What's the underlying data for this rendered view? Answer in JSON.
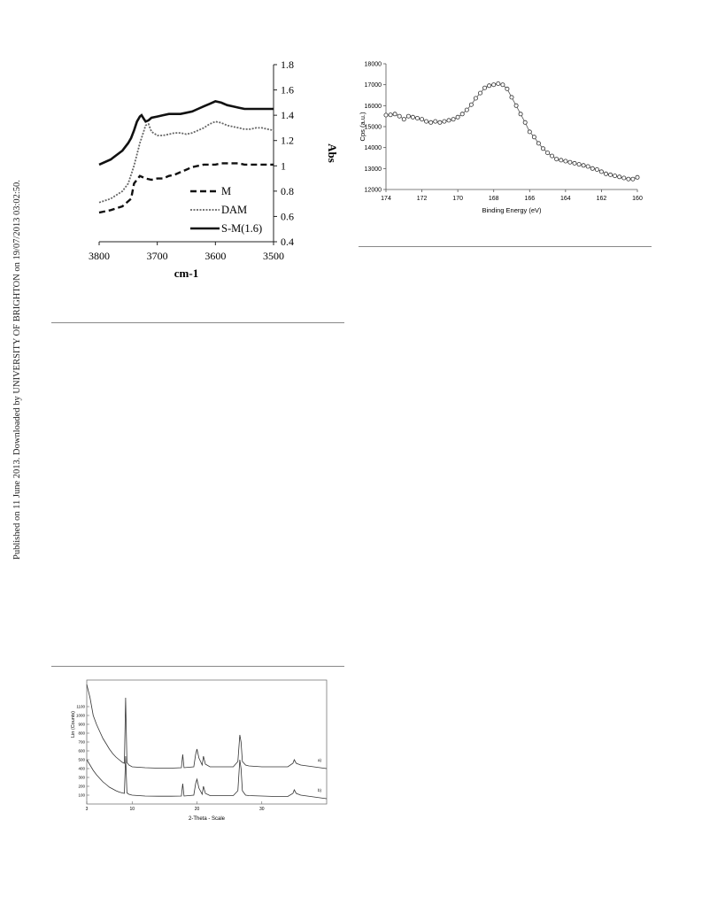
{
  "sidebar": {
    "text": "Published on 11 June 2013. Downloaded by UNIVERSITY OF BRIGHTON on 19/07/2013 03:02:50."
  },
  "chart_data": [
    {
      "type": "line",
      "xlabel": "cm-1",
      "ylabel": "Abs",
      "xlim": [
        3800,
        3500
      ],
      "ylim": [
        0.4,
        1.8
      ],
      "x_ticks": [
        "3800",
        "3700",
        "3600",
        "3500"
      ],
      "y_ticks": [
        "0.4",
        "0.6",
        "0.8",
        "1",
        "1.2",
        "1.4",
        "1.6",
        "1.8"
      ],
      "legend_position": "bottom-right",
      "grid": false,
      "series": [
        {
          "name": "M",
          "style": "dashed",
          "x": [
            3800,
            3780,
            3760,
            3745,
            3740,
            3730,
            3720,
            3710,
            3700,
            3690,
            3680,
            3670,
            3660,
            3650,
            3640,
            3630,
            3620,
            3610,
            3600,
            3590,
            3580,
            3570,
            3560,
            3550,
            3540,
            3530,
            3520,
            3510,
            3500
          ],
          "y": [
            0.63,
            0.65,
            0.68,
            0.74,
            0.86,
            0.92,
            0.9,
            0.89,
            0.9,
            0.9,
            0.92,
            0.93,
            0.95,
            0.97,
            0.99,
            1.0,
            1.01,
            1.01,
            1.01,
            1.02,
            1.02,
            1.02,
            1.02,
            1.01,
            1.01,
            1.01,
            1.01,
            1.01,
            1.01
          ]
        },
        {
          "name": "DAM",
          "style": "dotted",
          "x": [
            3800,
            3780,
            3760,
            3750,
            3740,
            3730,
            3725,
            3720,
            3715,
            3710,
            3700,
            3690,
            3680,
            3670,
            3660,
            3650,
            3640,
            3630,
            3620,
            3610,
            3600,
            3590,
            3580,
            3570,
            3560,
            3550,
            3540,
            3530,
            3520,
            3510,
            3500
          ],
          "y": [
            0.71,
            0.74,
            0.8,
            0.86,
            1.0,
            1.18,
            1.25,
            1.32,
            1.33,
            1.27,
            1.24,
            1.24,
            1.25,
            1.26,
            1.26,
            1.25,
            1.26,
            1.28,
            1.3,
            1.33,
            1.35,
            1.34,
            1.32,
            1.31,
            1.3,
            1.29,
            1.29,
            1.3,
            1.3,
            1.29,
            1.28
          ]
        },
        {
          "name": "S-M(1.6)",
          "style": "solid",
          "x": [
            3800,
            3780,
            3760,
            3750,
            3745,
            3740,
            3735,
            3730,
            3727,
            3723,
            3720,
            3715,
            3710,
            3700,
            3690,
            3680,
            3670,
            3660,
            3650,
            3640,
            3630,
            3620,
            3610,
            3600,
            3590,
            3580,
            3570,
            3560,
            3550,
            3540,
            3530,
            3520,
            3510,
            3500
          ],
          "y": [
            1.01,
            1.05,
            1.12,
            1.18,
            1.22,
            1.28,
            1.35,
            1.39,
            1.4,
            1.37,
            1.35,
            1.36,
            1.38,
            1.39,
            1.4,
            1.41,
            1.41,
            1.41,
            1.42,
            1.43,
            1.45,
            1.47,
            1.49,
            1.51,
            1.5,
            1.48,
            1.47,
            1.46,
            1.45,
            1.45,
            1.45,
            1.45,
            1.45,
            1.45
          ]
        }
      ]
    },
    {
      "type": "scatter",
      "xlabel": "Binding Energy (eV)",
      "ylabel": "Cps (a.u.)",
      "xlim": [
        174,
        160
      ],
      "ylim": [
        12000,
        18000
      ],
      "x_ticks": [
        "174",
        "172",
        "170",
        "168",
        "166",
        "164",
        "162",
        "160"
      ],
      "y_ticks": [
        "12000",
        "13000",
        "14000",
        "15000",
        "16000",
        "17000",
        "18000"
      ],
      "grid": false,
      "marker": "open-circle",
      "series": [
        {
          "x": [
            174.0,
            173.75,
            173.5,
            173.25,
            173.0,
            172.75,
            172.5,
            172.25,
            172.0,
            171.75,
            171.5,
            171.25,
            171.0,
            170.75,
            170.5,
            170.25,
            170.0,
            169.75,
            169.5,
            169.25,
            169.0,
            168.75,
            168.5,
            168.25,
            168.0,
            167.75,
            167.5,
            167.25,
            167.0,
            166.75,
            166.5,
            166.25,
            166.0,
            165.75,
            165.5,
            165.25,
            165.0,
            164.75,
            164.5,
            164.25,
            164.0,
            163.75,
            163.5,
            163.25,
            163.0,
            162.75,
            162.5,
            162.25,
            162.0,
            161.75,
            161.5,
            161.25,
            161.0,
            160.75,
            160.5,
            160.25,
            160.0
          ],
          "y": [
            15550,
            15560,
            15600,
            15500,
            15350,
            15500,
            15450,
            15400,
            15350,
            15250,
            15200,
            15250,
            15200,
            15250,
            15300,
            15350,
            15450,
            15600,
            15800,
            16050,
            16350,
            16600,
            16850,
            16950,
            17000,
            17050,
            17000,
            16800,
            16400,
            16000,
            15600,
            15200,
            14750,
            14500,
            14200,
            13950,
            13750,
            13600,
            13450,
            13400,
            13350,
            13300,
            13250,
            13200,
            13150,
            13100,
            13000,
            12950,
            12850,
            12750,
            12700,
            12650,
            12600,
            12550,
            12500,
            12500,
            12580
          ]
        }
      ]
    },
    {
      "type": "line",
      "xlabel": "2-Theta - Scale",
      "ylabel": "Lin (Counts)",
      "xlim": [
        3,
        40
      ],
      "ylim": [
        0,
        1400
      ],
      "x_ticks": [
        "3",
        "10",
        "20",
        "30"
      ],
      "y_ticks": [
        "100",
        "200",
        "300",
        "400",
        "500",
        "600",
        "700",
        "800",
        "900",
        "1000",
        "1100"
      ],
      "grid": false,
      "series": [
        {
          "name": "a)",
          "x": [
            3.0,
            3.5,
            4.0,
            4.5,
            5.0,
            5.5,
            6.0,
            6.5,
            7.0,
            7.5,
            8.0,
            8.5,
            8.8,
            9.0,
            9.2,
            9.5,
            10,
            12,
            14,
            16,
            17.6,
            17.8,
            18,
            19.5,
            19.8,
            20.0,
            20.3,
            20.8,
            21.0,
            21.3,
            22,
            24,
            25.6,
            26.3,
            26.6,
            26.8,
            27.0,
            27.5,
            28,
            30,
            32,
            34,
            34.8,
            35.0,
            35.3,
            36,
            38,
            40
          ],
          "y": [
            1350,
            1200,
            1000,
            900,
            820,
            740,
            680,
            620,
            570,
            530,
            500,
            470,
            460,
            1200,
            470,
            440,
            420,
            410,
            405,
            405,
            410,
            560,
            410,
            420,
            560,
            620,
            520,
            440,
            540,
            450,
            420,
            420,
            420,
            480,
            780,
            700,
            480,
            440,
            430,
            420,
            420,
            420,
            460,
            500,
            460,
            440,
            420,
            400
          ]
        },
        {
          "name": "b)",
          "x": [
            3.0,
            3.5,
            4.0,
            4.5,
            5.0,
            5.5,
            6.0,
            6.5,
            7.0,
            7.5,
            8.0,
            8.5,
            8.8,
            9.0,
            9.2,
            9.5,
            10,
            12,
            14,
            16,
            17.6,
            17.8,
            18,
            19.5,
            19.8,
            20.0,
            20.3,
            20.8,
            21.0,
            21.3,
            22,
            24,
            25.6,
            26.3,
            26.6,
            26.8,
            27.0,
            27.5,
            28,
            30,
            32,
            34,
            34.8,
            35.0,
            35.3,
            36,
            38,
            40
          ],
          "y": [
            500,
            440,
            380,
            330,
            290,
            250,
            220,
            190,
            170,
            150,
            135,
            125,
            120,
            540,
            125,
            110,
            100,
            90,
            88,
            88,
            90,
            230,
            90,
            100,
            230,
            280,
            180,
            110,
            200,
            120,
            95,
            95,
            95,
            150,
            500,
            400,
            150,
            100,
            95,
            90,
            85,
            85,
            120,
            160,
            120,
            100,
            80,
            60
          ]
        }
      ]
    }
  ]
}
